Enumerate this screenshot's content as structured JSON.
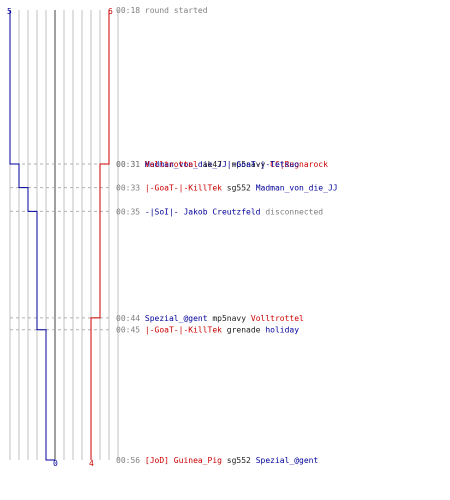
{
  "colors": {
    "team_blue": "#000099",
    "team_red": "#cc0000",
    "grid": "#c0c0c0",
    "center_line": "#808080",
    "dashed": "#b0b0b0",
    "timestamp": "#808080"
  },
  "score_labels": {
    "blue_start": "5",
    "red_start": "6",
    "blue_end": "0",
    "red_end": "4"
  },
  "chart_data": {
    "type": "line",
    "y_range": [
      "00:18",
      "00:56"
    ],
    "series": [
      {
        "team": "blue",
        "values": [
          5,
          4,
          3,
          2,
          1,
          0
        ]
      },
      {
        "team": "red",
        "values": [
          6,
          5,
          4
        ]
      }
    ]
  },
  "events": [
    {
      "time": "00:18",
      "parts": [
        {
          "text": "round started",
          "c": "gray"
        }
      ]
    },
    {
      "time": "00:31",
      "parts": [
        {
          "text": "Madman_von_die_JJ",
          "c": "blue"
        },
        {
          "text": "mp5navy",
          "c": "black"
        },
        {
          "text": "CC|Ragnarock",
          "c": "red"
        }
      ]
    },
    {
      "time": "00:31",
      "parts": [
        {
          "text": "Volltrottel",
          "c": "red"
        },
        {
          "text": "ak47",
          "c": "black"
        },
        {
          "text": "|-GoaT-|-Tetsuo",
          "c": "blue"
        }
      ]
    },
    {
      "time": "00:33",
      "parts": [
        {
          "text": "|-GoaT-|-KillTek",
          "c": "red"
        },
        {
          "text": "sg552",
          "c": "black"
        },
        {
          "text": "Madman_von_die_JJ",
          "c": "blue"
        }
      ]
    },
    {
      "time": "00:35",
      "parts": [
        {
          "text": "-|SoI|- Jakob Creutzfeld",
          "c": "blue"
        },
        {
          "text": "disconnected",
          "c": "gray"
        }
      ]
    },
    {
      "time": "00:44",
      "parts": [
        {
          "text": "Spezial_@gent",
          "c": "blue"
        },
        {
          "text": "mp5navy",
          "c": "black"
        },
        {
          "text": "Volltrottel",
          "c": "red"
        }
      ]
    },
    {
      "time": "00:45",
      "parts": [
        {
          "text": "|-GoaT-|-KillTek",
          "c": "red"
        },
        {
          "text": "grenade",
          "c": "black"
        },
        {
          "text": "holiday",
          "c": "blue"
        }
      ]
    },
    {
      "time": "00:56",
      "parts": [
        {
          "text": "[JoD] Guinea_Pig",
          "c": "red"
        },
        {
          "text": "sg552",
          "c": "black"
        },
        {
          "text": "Spezial_@gent",
          "c": "blue"
        }
      ]
    }
  ]
}
